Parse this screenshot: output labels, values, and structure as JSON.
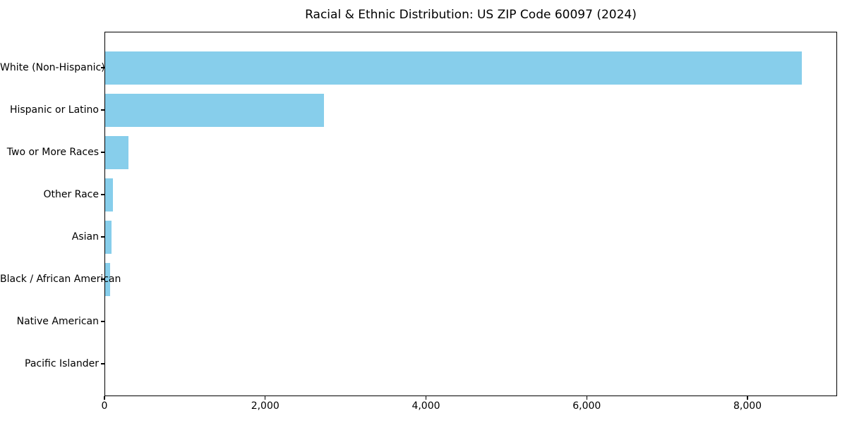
{
  "page": {
    "title": "Racial & Ethnic Distribution: US ZIP Code 60097 (2024)"
  },
  "chart_data": {
    "type": "bar",
    "orientation": "horizontal",
    "title": "Racial & Ethnic Distribution: US ZIP Code 60097 (2024)",
    "categories": [
      "White (Non-Hispanic)",
      "Hispanic or Latino",
      "Two or More Races",
      "Other Race",
      "Asian",
      "Black / African American",
      "Native American",
      "Pacific Islander"
    ],
    "values": [
      8680,
      2730,
      300,
      105,
      85,
      68,
      0,
      0
    ],
    "xlabel": "",
    "ylabel": "",
    "xlim": [
      0,
      9115
    ],
    "xticks": {
      "values": [
        0,
        2000,
        4000,
        6000,
        8000
      ],
      "labels": [
        "0",
        "2,000",
        "4,000",
        "6,000",
        "8,000"
      ]
    },
    "bar_color": "#87CEEB",
    "axis_color": "#000000",
    "background_color": "#ffffff",
    "grid": false,
    "legend": null
  }
}
